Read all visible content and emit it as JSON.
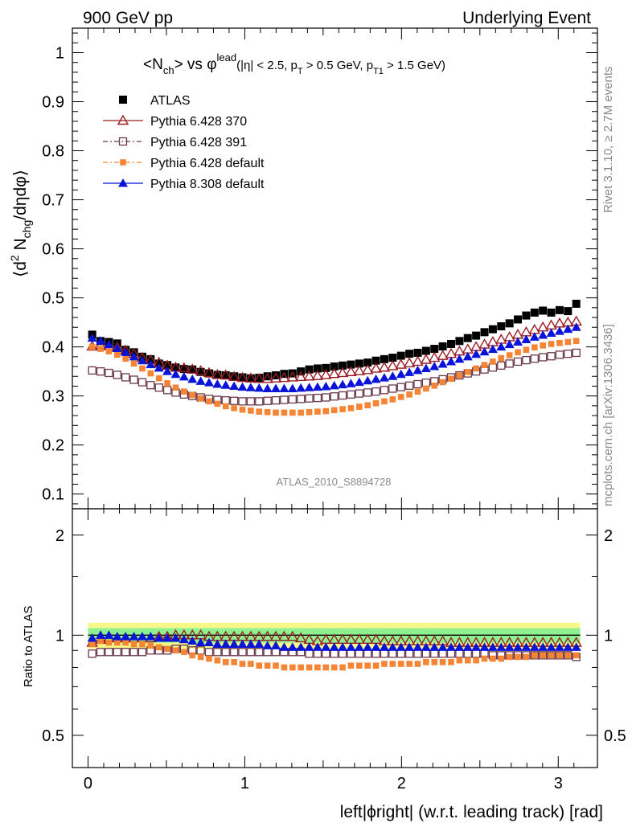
{
  "header": {
    "left": "900 GeV pp",
    "right": "Underlying Event"
  },
  "side_labels": {
    "rivet": "Rivet 3.1.10, ≥ 2.7M events",
    "mcplots": "mcplots.cern.ch [arXiv:1306.3436]"
  },
  "watermark": "ATLAS_2010_S8894728",
  "colors": {
    "ATLAS": "#000000",
    "Pythia 6.428 370": "#9b1c22",
    "Pythia 6.428 391": "#6b3a4a",
    "Pythia 6.428 default": "#f58535",
    "Pythia 8.308 default": "#0a14d8",
    "band_inner": "#8ef08e",
    "band_outer": "#f7f78a"
  },
  "chart_data": [
    {
      "type": "scatter",
      "panel": "main",
      "title_parts": {
        "a": "<N",
        "a_sub": "ch",
        "b": "> vs φ",
        "b_sup": "lead",
        "c": "(|η| < 2.5, p",
        "c_sub": "T",
        "d": " > 0.5 GeV, p",
        "d_sub": "T1",
        "e": " > 1.5 GeV)"
      },
      "ylabel_parts": {
        "a": "⟨d",
        "a_sup": "2",
        "b": " N",
        "b_sub": "chg",
        "c": "/dηdφ⟩"
      },
      "xlabel": "left|ϕright| (w.r.t. leading track) [rad]",
      "xlim": [
        -0.1,
        3.25
      ],
      "ylim": [
        0.07,
        1.05
      ],
      "yticks": [
        "0.1",
        "0.2",
        "0.3",
        "0.4",
        "0.5",
        "0.6",
        "0.7",
        "0.8",
        "0.9",
        "1"
      ],
      "xticks": [
        "0",
        "1",
        "2",
        "3"
      ],
      "legend_position": "top-left",
      "series": [
        {
          "name": "ATLAS",
          "marker": "square-filled",
          "values": [
            0.425,
            0.412,
            0.41,
            0.407,
            0.394,
            0.389,
            0.38,
            0.375,
            0.366,
            0.363,
            0.358,
            0.355,
            0.354,
            0.349,
            0.346,
            0.343,
            0.342,
            0.34,
            0.338,
            0.336,
            0.337,
            0.34,
            0.342,
            0.345,
            0.346,
            0.35,
            0.354,
            0.356,
            0.357,
            0.36,
            0.362,
            0.364,
            0.366,
            0.368,
            0.372,
            0.375,
            0.378,
            0.382,
            0.386,
            0.388,
            0.392,
            0.396,
            0.401,
            0.406,
            0.412,
            0.418,
            0.423,
            0.43,
            0.436,
            0.442,
            0.448,
            0.456,
            0.464,
            0.47,
            0.474,
            0.47,
            0.475,
            0.473,
            0.488
          ]
        },
        {
          "name": "Pythia 6.428 370",
          "marker": "triangle-open",
          "values": [
            0.401,
            0.404,
            0.402,
            0.399,
            0.393,
            0.386,
            0.378,
            0.373,
            0.368,
            0.362,
            0.358,
            0.357,
            0.354,
            0.351,
            0.347,
            0.343,
            0.342,
            0.339,
            0.337,
            0.336,
            0.335,
            0.335,
            0.336,
            0.337,
            0.338,
            0.339,
            0.34,
            0.341,
            0.343,
            0.345,
            0.347,
            0.349,
            0.351,
            0.353,
            0.356,
            0.358,
            0.361,
            0.364,
            0.367,
            0.37,
            0.374,
            0.378,
            0.382,
            0.386,
            0.391,
            0.395,
            0.4,
            0.405,
            0.41,
            0.415,
            0.42,
            0.425,
            0.43,
            0.435,
            0.44,
            0.444,
            0.448,
            0.45,
            0.452
          ]
        },
        {
          "name": "Pythia 6.428 391",
          "marker": "square-open",
          "values": [
            0.352,
            0.35,
            0.347,
            0.343,
            0.338,
            0.333,
            0.328,
            0.322,
            0.317,
            0.312,
            0.307,
            0.303,
            0.3,
            0.297,
            0.294,
            0.292,
            0.291,
            0.29,
            0.289,
            0.289,
            0.289,
            0.29,
            0.291,
            0.292,
            0.293,
            0.294,
            0.295,
            0.296,
            0.297,
            0.299,
            0.301,
            0.303,
            0.305,
            0.307,
            0.309,
            0.312,
            0.315,
            0.318,
            0.321,
            0.324,
            0.327,
            0.33,
            0.334,
            0.338,
            0.342,
            0.346,
            0.35,
            0.354,
            0.358,
            0.362,
            0.366,
            0.37,
            0.373,
            0.376,
            0.379,
            0.381,
            0.384,
            0.386,
            0.388
          ]
        },
        {
          "name": "Pythia 6.428 default",
          "marker": "square-small-filled",
          "values": [
            0.4,
            0.396,
            0.391,
            0.384,
            0.376,
            0.366,
            0.356,
            0.346,
            0.336,
            0.326,
            0.317,
            0.309,
            0.302,
            0.295,
            0.289,
            0.284,
            0.279,
            0.275,
            0.272,
            0.27,
            0.268,
            0.267,
            0.266,
            0.266,
            0.266,
            0.266,
            0.267,
            0.268,
            0.269,
            0.271,
            0.273,
            0.275,
            0.278,
            0.281,
            0.285,
            0.289,
            0.293,
            0.298,
            0.303,
            0.309,
            0.315,
            0.321,
            0.328,
            0.335,
            0.342,
            0.349,
            0.356,
            0.363,
            0.37,
            0.377,
            0.383,
            0.389,
            0.394,
            0.399,
            0.403,
            0.406,
            0.408,
            0.41,
            0.412
          ]
        },
        {
          "name": "Pythia 8.308 default",
          "marker": "triangle-filled",
          "values": [
            0.418,
            0.412,
            0.405,
            0.397,
            0.389,
            0.38,
            0.372,
            0.364,
            0.357,
            0.35,
            0.344,
            0.339,
            0.334,
            0.33,
            0.327,
            0.324,
            0.322,
            0.32,
            0.318,
            0.317,
            0.316,
            0.315,
            0.315,
            0.315,
            0.315,
            0.316,
            0.317,
            0.318,
            0.319,
            0.321,
            0.323,
            0.325,
            0.328,
            0.331,
            0.334,
            0.337,
            0.34,
            0.344,
            0.348,
            0.352,
            0.356,
            0.36,
            0.365,
            0.37,
            0.375,
            0.38,
            0.385,
            0.39,
            0.395,
            0.4,
            0.405,
            0.41,
            0.415,
            0.42,
            0.424,
            0.428,
            0.432,
            0.436,
            0.44
          ]
        }
      ]
    },
    {
      "type": "scatter",
      "panel": "ratio",
      "ylabel": "Ratio to ATLAS",
      "yscale": "log",
      "ylim": [
        0.4,
        2.4
      ],
      "yticks": [
        "0.5",
        "1",
        "2"
      ],
      "band_outer": [
        0.91,
        1.09
      ],
      "band_inner": [
        0.95,
        1.05
      ],
      "series": [
        {
          "name": "Pythia 6.428 370",
          "values": [
            0.95,
            0.97,
            0.98,
            0.98,
            0.98,
            0.98,
            0.98,
            0.98,
            0.99,
            0.99,
            1.0,
            1.0,
            1.0,
            1.0,
            0.99,
            0.99,
            0.99,
            0.99,
            0.99,
            0.99,
            0.99,
            0.99,
            0.99,
            0.99,
            0.99,
            0.98,
            0.97,
            0.96,
            0.97,
            0.97,
            0.97,
            0.97,
            0.97,
            0.97,
            0.97,
            0.96,
            0.96,
            0.96,
            0.96,
            0.96,
            0.96,
            0.96,
            0.96,
            0.95,
            0.95,
            0.95,
            0.95,
            0.95,
            0.95,
            0.95,
            0.95,
            0.95,
            0.95,
            0.95,
            0.95,
            0.95,
            0.95,
            0.95,
            0.95
          ]
        },
        {
          "name": "Pythia 6.428 391",
          "values": [
            0.88,
            0.89,
            0.89,
            0.89,
            0.89,
            0.89,
            0.89,
            0.9,
            0.9,
            0.9,
            0.91,
            0.91,
            0.9,
            0.9,
            0.89,
            0.89,
            0.89,
            0.89,
            0.89,
            0.89,
            0.89,
            0.89,
            0.89,
            0.89,
            0.89,
            0.89,
            0.88,
            0.88,
            0.88,
            0.88,
            0.88,
            0.88,
            0.88,
            0.88,
            0.88,
            0.88,
            0.88,
            0.88,
            0.88,
            0.88,
            0.88,
            0.88,
            0.88,
            0.88,
            0.88,
            0.88,
            0.88,
            0.88,
            0.87,
            0.87,
            0.87,
            0.87,
            0.87,
            0.87,
            0.87,
            0.87,
            0.87,
            0.87,
            0.86
          ]
        },
        {
          "name": "Pythia 6.428 default",
          "values": [
            0.94,
            0.96,
            0.95,
            0.95,
            0.95,
            0.94,
            0.94,
            0.93,
            0.92,
            0.91,
            0.9,
            0.89,
            0.87,
            0.86,
            0.85,
            0.84,
            0.83,
            0.83,
            0.82,
            0.82,
            0.81,
            0.81,
            0.81,
            0.8,
            0.8,
            0.8,
            0.8,
            0.8,
            0.8,
            0.8,
            0.8,
            0.81,
            0.81,
            0.81,
            0.81,
            0.82,
            0.82,
            0.82,
            0.82,
            0.82,
            0.83,
            0.83,
            0.83,
            0.83,
            0.84,
            0.84,
            0.84,
            0.85,
            0.85,
            0.85,
            0.86,
            0.86,
            0.86,
            0.87,
            0.87,
            0.87,
            0.87,
            0.87,
            0.87
          ]
        },
        {
          "name": "Pythia 8.308 default",
          "values": [
            0.98,
            1.0,
            1.0,
            0.99,
            0.99,
            0.99,
            0.99,
            0.99,
            0.98,
            0.98,
            0.98,
            0.97,
            0.96,
            0.95,
            0.95,
            0.94,
            0.94,
            0.94,
            0.94,
            0.94,
            0.94,
            0.93,
            0.93,
            0.92,
            0.92,
            0.92,
            0.92,
            0.92,
            0.92,
            0.92,
            0.92,
            0.92,
            0.92,
            0.92,
            0.92,
            0.92,
            0.92,
            0.92,
            0.92,
            0.92,
            0.92,
            0.92,
            0.92,
            0.92,
            0.92,
            0.92,
            0.92,
            0.92,
            0.92,
            0.92,
            0.92,
            0.92,
            0.92,
            0.92,
            0.92,
            0.92,
            0.92,
            0.92,
            0.92
          ]
        }
      ]
    }
  ]
}
